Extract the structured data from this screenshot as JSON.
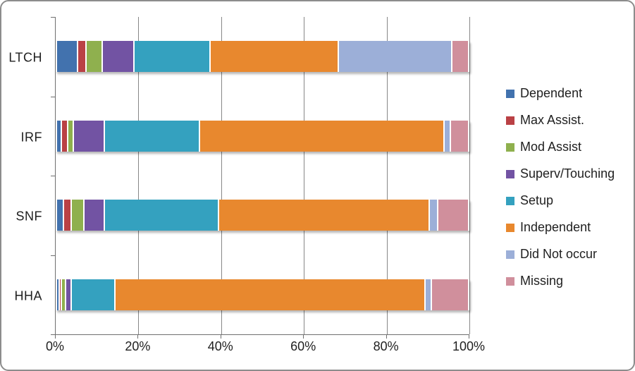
{
  "chart_data": {
    "type": "bar",
    "orientation": "horizontal",
    "stacked": true,
    "value_unit": "percent",
    "title": "",
    "categories": [
      "LTCH",
      "IRF",
      "SNF",
      "HHA"
    ],
    "series": [
      {
        "name": "Dependent",
        "color": "#4272AE",
        "values": [
          5.5,
          1.5,
          2,
          1
        ]
      },
      {
        "name": "Max Assist.",
        "color": "#BA4145",
        "values": [
          2,
          1.5,
          2,
          0.5
        ]
      },
      {
        "name": "Mod Assist",
        "color": "#8FB04E",
        "values": [
          4,
          1.5,
          3,
          1
        ]
      },
      {
        "name": "Superv/Touching",
        "color": "#7253A3",
        "values": [
          7.5,
          7.5,
          5,
          1.5
        ]
      },
      {
        "name": "Setup",
        "color": "#34A1BF",
        "values": [
          18.5,
          23,
          27.5,
          10.5
        ]
      },
      {
        "name": "Independent",
        "color": "#E8882E",
        "values": [
          31,
          59,
          51,
          75
        ]
      },
      {
        "name": "Did Not occur",
        "color": "#9CAFD8",
        "values": [
          27.5,
          1.5,
          2,
          1.5
        ]
      },
      {
        "name": "Missing",
        "color": "#D08F9C",
        "values": [
          4,
          4.5,
          7.5,
          9
        ]
      }
    ],
    "x_axis": {
      "ticks": [
        "0%",
        "20%",
        "40%",
        "60%",
        "80%",
        "100%"
      ],
      "min": 0,
      "max": 100
    },
    "grid": true,
    "legend_position": "right"
  },
  "style": {
    "axis_color": "#6f6f6f",
    "grid_color": "#878787",
    "text_color": "#1f1f1f",
    "background": "#ffffff",
    "frame_border": "#8c8c8c"
  }
}
